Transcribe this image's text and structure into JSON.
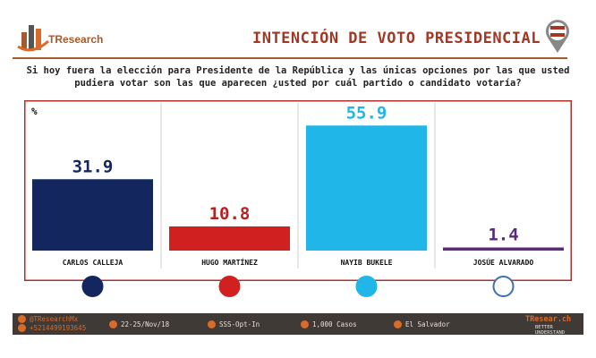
{
  "header": {
    "brand": "TResearch",
    "title": "INTENCIÓN DE VOTO PRESIDENCIAL"
  },
  "question": "Si hoy fuera la elección para Presidente de la República y las únicas opciones por las que usted pudiera votar son las que aparecen ¿usted por cuál partido o candidato votaría?",
  "chart_data": {
    "type": "bar",
    "unit_label": "%",
    "categories": [
      "CARLOS CALLEJA",
      "HUGO MARTÍNEZ",
      "NAYIB BUKELE",
      "JOSÚE ALVARADO"
    ],
    "values": [
      31.9,
      10.8,
      55.9,
      1.4
    ],
    "colors": [
      "#13275e",
      "#d0201f",
      "#21b6e8",
      "#5b2a7e"
    ],
    "value_colors": [
      "#13275e",
      "#b82020",
      "#21b6e8",
      "#5b2a7e"
    ],
    "ylim": [
      0,
      60
    ],
    "grid": false,
    "party_logos": [
      "arena-logo",
      "fmln-logo",
      "gana-logo",
      "vamos-logo"
    ]
  },
  "footer": {
    "twitter": "@TResearchMx",
    "phone": "+5214499193645",
    "dates": "22-25/Nov/18",
    "method": "SSS-Opt-In",
    "cases": "1,000 Casos",
    "country": "El Salvador",
    "site": "TResear.ch",
    "tagline": "BETTER UNDERSTAND"
  }
}
